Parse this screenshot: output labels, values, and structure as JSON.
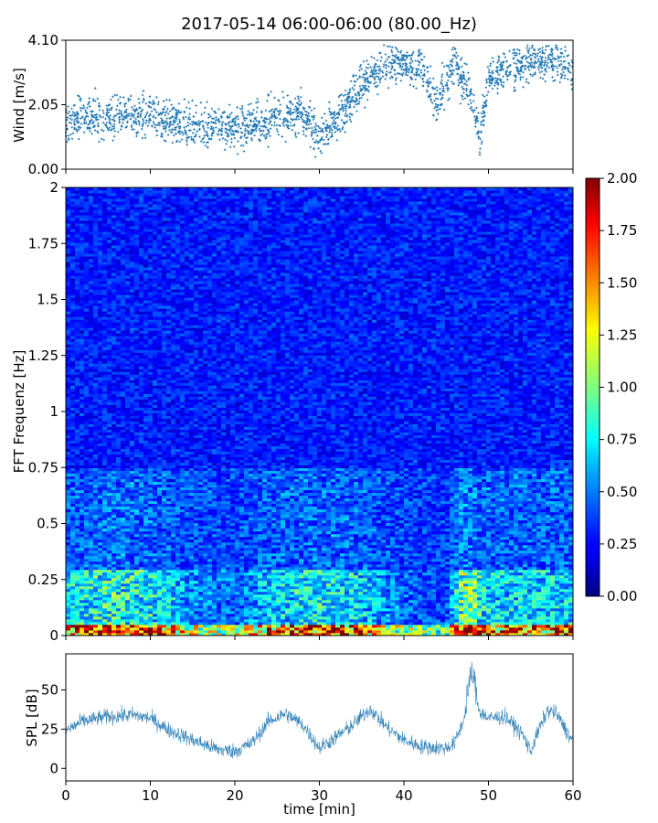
{
  "figure": {
    "title": "2017-05-14 06:00-06:00 (80.00_Hz)"
  },
  "chart_data": [
    {
      "type": "scatter",
      "ylabel": "Wind [m/s]",
      "xlim": [
        0,
        60
      ],
      "ylim": [
        0,
        4.1
      ],
      "yticks": [
        "0.00",
        "2.05",
        "4.10"
      ],
      "marker_color": "#1f77b4",
      "trend_x": [
        0,
        5,
        10,
        15,
        20,
        25,
        28,
        30,
        32,
        35,
        38,
        40,
        42,
        44,
        46,
        47,
        48,
        49,
        50,
        52,
        55,
        57,
        60
      ],
      "trend_y": [
        1.5,
        1.7,
        1.6,
        1.4,
        1.3,
        1.6,
        1.9,
        0.9,
        1.6,
        2.7,
        3.4,
        3.4,
        3.3,
        2.0,
        3.5,
        2.8,
        2.3,
        1.0,
        2.9,
        3.2,
        3.4,
        3.5,
        3.1
      ],
      "points_per_series": 2200
    },
    {
      "type": "heatmap",
      "ylabel": "FFT Frequenz [Hz]",
      "xlim": [
        0,
        60
      ],
      "ylim": [
        0,
        2
      ],
      "yticks": [
        "0",
        "0.25",
        "0.5",
        "0.75",
        "1",
        "1.25",
        "1.5",
        "1.75",
        "2"
      ],
      "colormap": "jet",
      "colorbar": {
        "min": 0,
        "max": 2,
        "ticks": [
          "0.00",
          "0.25",
          "0.50",
          "0.75",
          "1.00",
          "1.25",
          "1.50",
          "1.75",
          "2.00"
        ]
      },
      "value_description_levels": {
        "low_freq_band_0_to_0_05Hz": 1.7,
        "band_0_05_to_0_3Hz": 0.75,
        "band_0_3_to_0_75Hz": 0.45,
        "band_above_0_75Hz": 0.3
      },
      "activity_x": [
        0,
        5,
        10,
        15,
        20,
        25,
        30,
        35,
        40,
        45,
        47,
        48,
        50,
        55,
        60
      ],
      "activity_level": [
        0.9,
        1.1,
        1.0,
        0.7,
        0.6,
        0.9,
        1.0,
        0.9,
        0.6,
        0.5,
        1.3,
        1.2,
        0.9,
        0.9,
        0.9
      ]
    },
    {
      "type": "line",
      "ylabel": "SPL [dB]",
      "xlabel": "time [min]",
      "xlim": [
        0,
        60
      ],
      "ylim": [
        -8,
        73
      ],
      "yticks": [
        "0",
        "25",
        "50"
      ],
      "xticks": [
        "0",
        "10",
        "20",
        "30",
        "40",
        "50",
        "60"
      ],
      "line_color": "#1f77b4",
      "trend_x": [
        0,
        2,
        5,
        8,
        10,
        12,
        15,
        18,
        20,
        22,
        24,
        26,
        28,
        30,
        32,
        34,
        36,
        38,
        40,
        42,
        44,
        45,
        46,
        47,
        48,
        49,
        50,
        52,
        54,
        55,
        56,
        57,
        58,
        60
      ],
      "trend_y": [
        24,
        30,
        33,
        34,
        32,
        25,
        18,
        12,
        11,
        16,
        30,
        35,
        28,
        13,
        20,
        28,
        38,
        26,
        18,
        14,
        13,
        13,
        16,
        30,
        55,
        36,
        32,
        33,
        22,
        11,
        25,
        37,
        35,
        17
      ]
    }
  ]
}
